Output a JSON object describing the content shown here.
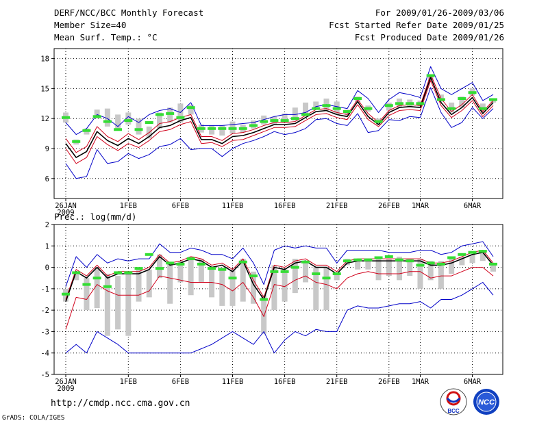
{
  "header": {
    "line1": "DERF/NCC/BCC Monthly Forecast",
    "line2": "Member Size=40",
    "line3": "Mean Surf. Temp.: °C",
    "right1": "For 2009/01/26-2009/03/06",
    "right2": "Fcst Started Refer Date 2009/01/25",
    "right3": "Fcst Produced Date 2009/01/26"
  },
  "footer": {
    "url": "http://cmdp.ncc.cma.gov.cn",
    "credit": "GrADS: COLA/IGES",
    "logo_bcc": "BCC",
    "logo_ncc": "NCC"
  },
  "colors": {
    "envelope": "#0000c8",
    "mean": "#000000",
    "band": "#d0001a",
    "bar": "#c8c8c8",
    "obs": "#33dd33",
    "grid": "#000000"
  },
  "chart_data": [
    {
      "type": "line",
      "name": "temperature",
      "ylabel": "Mean Surf. Temp.: °C",
      "ylim": [
        4,
        19
      ],
      "yticks": [
        6,
        9,
        12,
        15,
        18
      ],
      "x_ticks": [
        {
          "i": 0,
          "label": "26JAN",
          "sub": "2009"
        },
        {
          "i": 6,
          "label": "1FEB"
        },
        {
          "i": 11,
          "label": "6FEB"
        },
        {
          "i": 16,
          "label": "11FEB"
        },
        {
          "i": 21,
          "label": "16FEB"
        },
        {
          "i": 26,
          "label": "21FEB"
        },
        {
          "i": 31,
          "label": "26FEB"
        },
        {
          "i": 34,
          "label": "1MAR"
        },
        {
          "i": 39,
          "label": "6MAR"
        }
      ],
      "series": [
        {
          "name": "max",
          "values": [
            11.6,
            10.4,
            11.0,
            12.4,
            12.0,
            11.2,
            12.2,
            11.6,
            12.4,
            12.8,
            13.0,
            12.6,
            13.6,
            11.3,
            11.3,
            11.3,
            11.4,
            11.5,
            11.6,
            11.9,
            12.2,
            12.4,
            12.4,
            12.6,
            13.2,
            13.4,
            13.2,
            13.0,
            14.8,
            14.0,
            12.6,
            13.9,
            14.6,
            14.4,
            14.1,
            17.2,
            15.0,
            14.4,
            15.0,
            15.6,
            13.8,
            14.4
          ]
        },
        {
          "name": "upper",
          "values": [
            10.0,
            8.6,
            9.2,
            11.2,
            10.2,
            9.7,
            10.5,
            9.9,
            10.6,
            11.5,
            11.7,
            12.1,
            12.4,
            10.2,
            10.2,
            9.8,
            10.5,
            10.6,
            10.9,
            11.3,
            11.6,
            11.6,
            11.7,
            12.3,
            12.9,
            13.0,
            12.6,
            12.4,
            13.9,
            12.5,
            11.6,
            12.8,
            13.3,
            13.4,
            13.3,
            16.4,
            14.0,
            12.7,
            13.4,
            14.4,
            12.7,
            13.8
          ]
        },
        {
          "name": "mean",
          "values": [
            9.5,
            8.1,
            8.7,
            10.7,
            9.8,
            9.3,
            10.0,
            9.5,
            10.2,
            11.1,
            11.3,
            11.8,
            12.1,
            9.9,
            9.9,
            9.5,
            10.2,
            10.3,
            10.6,
            11.0,
            11.4,
            11.4,
            11.5,
            12.1,
            12.7,
            12.8,
            12.4,
            12.2,
            13.7,
            12.2,
            11.4,
            12.6,
            13.1,
            13.2,
            13.1,
            16.1,
            13.6,
            12.4,
            13.1,
            14.1,
            12.5,
            13.6
          ]
        },
        {
          "name": "lower",
          "values": [
            9.0,
            7.5,
            8.1,
            10.2,
            9.4,
            8.8,
            9.5,
            9.1,
            9.8,
            10.7,
            10.9,
            11.4,
            11.7,
            9.5,
            9.6,
            9.2,
            9.8,
            9.9,
            10.3,
            10.7,
            11.1,
            11.1,
            11.2,
            11.8,
            12.4,
            12.5,
            12.1,
            11.9,
            13.4,
            11.9,
            11.2,
            12.3,
            12.8,
            12.9,
            12.8,
            15.8,
            13.3,
            12.1,
            12.8,
            13.8,
            12.2,
            13.3
          ]
        },
        {
          "name": "min",
          "values": [
            7.5,
            6.0,
            6.2,
            8.9,
            7.5,
            7.7,
            8.5,
            8.0,
            8.4,
            9.2,
            9.4,
            10.0,
            8.9,
            9.0,
            9.0,
            8.2,
            9.0,
            9.5,
            9.8,
            10.2,
            10.7,
            10.4,
            10.6,
            11.0,
            11.9,
            12.0,
            11.5,
            11.3,
            12.5,
            10.6,
            10.8,
            11.9,
            11.8,
            12.2,
            12.1,
            15.1,
            12.6,
            11.1,
            11.6,
            13.1,
            12.0,
            13.0
          ]
        },
        {
          "name": "obs_bar_top",
          "values": [
            12.6,
            9.9,
            11.0,
            12.9,
            13.0,
            12.4,
            12.6,
            12.0,
            11.2,
            12.6,
            13.1,
            13.5,
            13.4,
            11.4,
            11.3,
            11.3,
            11.7,
            11.4,
            11.8,
            12.3,
            12.2,
            12.5,
            13.1,
            13.6,
            13.7,
            14.0,
            13.7,
            12.9,
            14.2,
            13.3,
            12.0,
            13.6,
            14.0,
            13.9,
            13.8,
            16.4,
            14.4,
            13.6,
            14.2,
            15.0,
            13.5,
            14.0
          ]
        },
        {
          "name": "obs_bar_bottom",
          "values": [
            11.6,
            9.4,
            10.4,
            12.0,
            11.2,
            10.8,
            11.4,
            10.4,
            10.0,
            11.0,
            11.6,
            11.6,
            12.4,
            10.6,
            10.4,
            10.3,
            10.5,
            10.6,
            11.0,
            11.4,
            11.4,
            11.6,
            11.8,
            12.4,
            13.0,
            12.8,
            12.4,
            12.3,
            13.6,
            12.7,
            11.4,
            12.8,
            13.1,
            13.2,
            13.2,
            15.8,
            13.7,
            12.6,
            13.1,
            14.3,
            12.8,
            13.6
          ]
        },
        {
          "name": "observed",
          "values": [
            12.1,
            9.7,
            10.8,
            12.2,
            11.7,
            10.9,
            11.8,
            10.9,
            11.6,
            12.4,
            12.5,
            12.1,
            13.1,
            11.0,
            11.0,
            11.0,
            11.0,
            11.0,
            11.3,
            11.7,
            11.8,
            11.8,
            12.0,
            12.4,
            13.0,
            13.3,
            13.0,
            12.7,
            14.0,
            13.0,
            11.7,
            13.3,
            13.5,
            13.5,
            13.5,
            16.3,
            13.9,
            13.0,
            14.0,
            14.6,
            13.0,
            13.9
          ]
        }
      ]
    },
    {
      "type": "line",
      "name": "precipitation",
      "ylabel": "Prec.: log(mm/d)",
      "ylim": [
        -5,
        2
      ],
      "yticks": [
        -5,
        -4,
        -3,
        -2,
        -1,
        0,
        1,
        2
      ],
      "x_ticks": [
        {
          "i": 0,
          "label": "26JAN",
          "sub": "2009"
        },
        {
          "i": 6,
          "label": "1FEB"
        },
        {
          "i": 11,
          "label": "6FEB"
        },
        {
          "i": 16,
          "label": "11FEB"
        },
        {
          "i": 21,
          "label": "16FEB"
        },
        {
          "i": 26,
          "label": "21FEB"
        },
        {
          "i": 31,
          "label": "26FEB"
        },
        {
          "i": 34,
          "label": "1MAR"
        },
        {
          "i": 39,
          "label": "6MAR"
        }
      ],
      "series": [
        {
          "name": "max",
          "values": [
            -0.9,
            0.5,
            0.0,
            0.6,
            0.2,
            0.4,
            0.3,
            0.4,
            0.4,
            1.1,
            0.7,
            0.7,
            0.9,
            0.8,
            0.6,
            0.6,
            0.4,
            0.9,
            0.2,
            -0.8,
            0.8,
            1.0,
            0.9,
            1.0,
            0.9,
            0.9,
            0.2,
            0.8,
            0.8,
            0.8,
            0.8,
            0.7,
            0.7,
            0.7,
            0.8,
            0.8,
            0.6,
            0.7,
            1.0,
            1.1,
            1.2,
            0.5
          ]
        },
        {
          "name": "upper",
          "values": [
            -1.5,
            -0.1,
            -0.4,
            0.1,
            -0.4,
            -0.2,
            -0.2,
            -0.2,
            0.0,
            0.6,
            0.2,
            0.3,
            0.5,
            0.4,
            0.1,
            0.2,
            -0.1,
            0.4,
            -0.6,
            -1.4,
            0.1,
            0.0,
            0.3,
            0.4,
            0.1,
            0.1,
            -0.2,
            0.3,
            0.4,
            0.4,
            0.4,
            0.4,
            0.4,
            0.4,
            0.4,
            0.2,
            0.2,
            0.3,
            0.5,
            0.7,
            0.8,
            0.2
          ]
        },
        {
          "name": "mean",
          "values": [
            -1.6,
            -0.2,
            -0.5,
            0.0,
            -0.5,
            -0.3,
            -0.3,
            -0.3,
            -0.1,
            0.5,
            0.1,
            0.2,
            0.4,
            0.3,
            0.0,
            0.1,
            -0.2,
            0.3,
            -0.8,
            -1.5,
            0.0,
            -0.1,
            0.2,
            0.3,
            0.0,
            0.0,
            -0.3,
            0.2,
            0.3,
            0.3,
            0.3,
            0.3,
            0.3,
            0.3,
            0.3,
            0.1,
            0.1,
            0.2,
            0.4,
            0.6,
            0.7,
            0.1
          ]
        },
        {
          "name": "lower",
          "values": [
            -2.9,
            -1.4,
            -1.5,
            -0.8,
            -1.1,
            -1.3,
            -1.3,
            -1.3,
            -1.1,
            -0.4,
            -0.5,
            -0.6,
            -0.7,
            -0.7,
            -0.7,
            -0.8,
            -1.1,
            -0.7,
            -1.4,
            -2.3,
            -0.8,
            -0.9,
            -0.6,
            -0.4,
            -0.7,
            -0.8,
            -1.0,
            -0.5,
            -0.3,
            -0.2,
            -0.3,
            -0.3,
            -0.3,
            -0.2,
            -0.2,
            -0.5,
            -0.4,
            -0.4,
            -0.2,
            0.0,
            0.0,
            -0.4
          ]
        },
        {
          "name": "min",
          "values": [
            -4.0,
            -3.6,
            -4.0,
            -3.0,
            -3.3,
            -3.6,
            -4.0,
            -4.0,
            -4.0,
            -4.0,
            -4.0,
            -4.0,
            -4.0,
            -3.8,
            -3.6,
            -3.3,
            -3.0,
            -3.3,
            -3.6,
            -3.0,
            -4.0,
            -3.4,
            -3.0,
            -3.2,
            -2.9,
            -3.0,
            -3.0,
            -2.0,
            -1.8,
            -1.9,
            -1.9,
            -1.8,
            -1.7,
            -1.7,
            -1.6,
            -1.9,
            -1.5,
            -1.5,
            -1.3,
            -1.0,
            -0.7,
            -1.3
          ]
        },
        {
          "name": "obs_bar_top",
          "values": [
            -1.0,
            -0.2,
            -0.5,
            0.0,
            -0.3,
            -0.4,
            -0.2,
            -0.1,
            -0.1,
            0.6,
            0.2,
            0.3,
            0.5,
            0.4,
            0.0,
            0.0,
            -0.1,
            0.4,
            -0.2,
            -1.3,
            0.1,
            -0.1,
            0.4,
            0.3,
            0.0,
            0.0,
            -0.3,
            0.4,
            0.4,
            0.3,
            0.4,
            0.4,
            0.5,
            0.4,
            0.4,
            0.3,
            0.3,
            0.5,
            0.5,
            0.6,
            0.8,
            0.2
          ]
        },
        {
          "name": "obs_bar_bottom",
          "values": [
            -1.6,
            -0.6,
            -2.0,
            -1.9,
            -3.2,
            -2.9,
            -3.2,
            -1.6,
            -1.4,
            -0.5,
            -1.7,
            -0.7,
            -1.3,
            -0.7,
            -1.4,
            -1.8,
            -1.8,
            -1.6,
            -1.7,
            -3.1,
            -2.0,
            -1.6,
            -1.2,
            -0.7,
            -2.0,
            -2.0,
            -0.6,
            0.1,
            -0.1,
            -0.1,
            -0.6,
            -0.4,
            -0.6,
            -0.4,
            -1.0,
            -0.6,
            -1.0,
            -0.3,
            0.1,
            0.2,
            0.3,
            -0.2
          ]
        },
        {
          "name": "observed",
          "values": [
            -1.25,
            -0.25,
            -0.8,
            -0.5,
            -0.9,
            -0.25,
            -0.25,
            -0.05,
            0.6,
            -0.05,
            0.2,
            0.15,
            0.4,
            0.15,
            -0.05,
            -0.1,
            -0.5,
            0.25,
            -0.4,
            -1.5,
            -0.2,
            -0.2,
            0.0,
            0.25,
            -0.3,
            -0.5,
            -0.3,
            0.3,
            0.35,
            0.35,
            0.45,
            0.5,
            0.35,
            0.3,
            0.1,
            0.2,
            0.15,
            0.45,
            0.6,
            0.7,
            0.75,
            0.15
          ]
        }
      ]
    }
  ]
}
